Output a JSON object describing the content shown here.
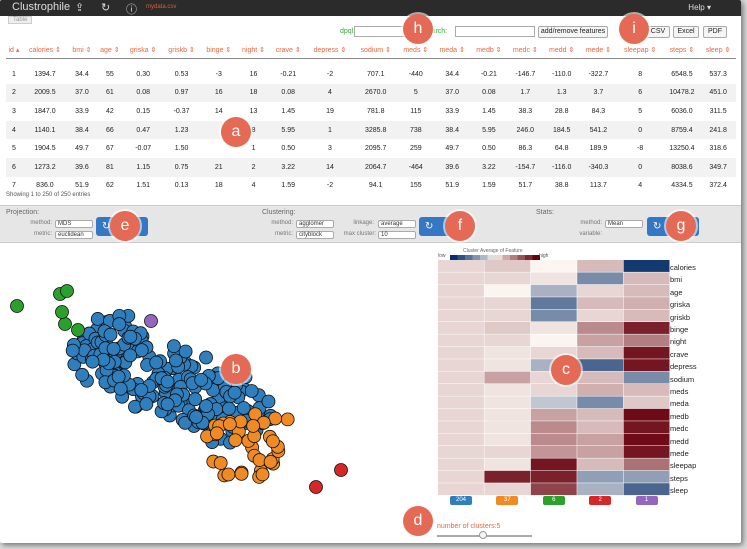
{
  "app": {
    "title": "Clustrophile",
    "filename": "mydata.csv",
    "help": "Help ▾",
    "table_tab": "Table"
  },
  "toolbar": {
    "dpql_label": "dpql:",
    "search_label": "Search:",
    "add_remove": "add/remove features",
    "csv": "CSV",
    "excel": "Excel",
    "pdf": "PDF"
  },
  "table": {
    "columns": [
      "id ▴",
      "calories ⇕",
      "bmi ⇕",
      "age ⇕",
      "griska ⇕",
      "griskb ⇕",
      "binge ⇕",
      "night ⇕",
      "crave ⇕",
      "depress ⇕",
      "sodium ⇕",
      "meds ⇕",
      "meda ⇕",
      "medb ⇕",
      "medc ⇕",
      "medd ⇕",
      "mede ⇕",
      "sleepap ⇕",
      "steps ⇕",
      "sleep ⇕"
    ],
    "rows": [
      [
        "1",
        "1394.7",
        "34.4",
        "55",
        "0.30",
        "0.53",
        "-3",
        "16",
        "-0.21",
        "-2",
        "707.1",
        "-440",
        "34.4",
        "-0.21",
        "-146.7",
        "-110.0",
        "-322.7",
        "8",
        "6548.5",
        "537.3"
      ],
      [
        "2",
        "2009.5",
        "37.0",
        "61",
        "0.08",
        "0.97",
        "16",
        "18",
        "0.08",
        "4",
        "2670.0",
        "5",
        "37.0",
        "0.08",
        "1.7",
        "1.3",
        "3.7",
        "6",
        "10478.2",
        "451.0"
      ],
      [
        "3",
        "1847.0",
        "33.9",
        "42",
        "0.15",
        "-0.37",
        "14",
        "13",
        "1.45",
        "19",
        "781.8",
        "115",
        "33.9",
        "1.45",
        "38.3",
        "28.8",
        "84.3",
        "5",
        "6036.0",
        "311.5"
      ],
      [
        "4",
        "1140.1",
        "38.4",
        "66",
        "0.47",
        "1.23",
        "",
        "8",
        "5.95",
        "1",
        "3285.8",
        "738",
        "38.4",
        "5.95",
        "246.0",
        "184.5",
        "541.2",
        "0",
        "8759.4",
        "241.8"
      ],
      [
        "5",
        "1904.5",
        "49.7",
        "67",
        "-0.07",
        "1.50",
        "",
        "1",
        "0.50",
        "3",
        "2095.7",
        "259",
        "49.7",
        "0.50",
        "86.3",
        "64.8",
        "189.9",
        "-8",
        "13250.4",
        "318.6"
      ],
      [
        "6",
        "1273.2",
        "39.6",
        "81",
        "1.15",
        "0.75",
        "21",
        "2",
        "3.22",
        "14",
        "2064.7",
        "-464",
        "39.6",
        "3.22",
        "-154.7",
        "-116.0",
        "-340.3",
        "0",
        "8038.6",
        "349.7"
      ],
      [
        "7",
        "836.0",
        "51.9",
        "62",
        "1.51",
        "0.13",
        "18",
        "4",
        "1.59",
        "-2",
        "94.1",
        "155",
        "51.9",
        "1.59",
        "51.7",
        "38.8",
        "113.7",
        "4",
        "4334.5",
        "372.4"
      ]
    ],
    "showing": "Showing 1 to 250 of 250 entries"
  },
  "projection": {
    "title": "Projection:",
    "method_label": "method:",
    "method": "MDS",
    "metric_label": "metric:",
    "metric": "euclidean"
  },
  "clustering": {
    "title": "Clustering:",
    "method_label": "method:",
    "method": "agglomer",
    "metric_label": "metric:",
    "metric": "cityblock",
    "linkage_label": "linkage:",
    "linkage": "average",
    "max_label": "max cluster:",
    "max": "10"
  },
  "stats": {
    "title": "Stats:",
    "method_label": "method:",
    "method": "Mean",
    "variable_label": "variable:"
  },
  "heatmap": {
    "title": "Cluster Average of Feature",
    "low": "low",
    "high": "high",
    "features": [
      "calories",
      "bmi",
      "age",
      "griska",
      "griskb",
      "binge",
      "night",
      "crave",
      "depress",
      "sodium",
      "meds",
      "meda",
      "medb",
      "medc",
      "medd",
      "mede",
      "sleepap",
      "steps",
      "sleep"
    ],
    "matrix": [
      [
        0.1,
        0.15,
        0.0,
        0.2,
        -0.95
      ],
      [
        0.1,
        0.1,
        0.05,
        -0.5,
        0.2
      ],
      [
        0.1,
        0.0,
        -0.3,
        0.1,
        0.2
      ],
      [
        0.1,
        0.1,
        -0.6,
        0.2,
        0.25
      ],
      [
        0.1,
        0.1,
        -0.5,
        0.1,
        0.2
      ],
      [
        0.1,
        0.15,
        0.05,
        0.4,
        0.85
      ],
      [
        0.1,
        0.1,
        0.0,
        0.3,
        0.45
      ],
      [
        0.1,
        0.05,
        0.1,
        0.2,
        0.9
      ],
      [
        0.1,
        0.05,
        -0.3,
        -0.7,
        0.9
      ],
      [
        0.1,
        0.3,
        0.1,
        0.2,
        -0.5
      ],
      [
        0.1,
        0.05,
        0.1,
        0.25,
        0.2
      ],
      [
        0.1,
        0.05,
        -0.2,
        -0.5,
        0.15
      ],
      [
        0.1,
        0.05,
        0.3,
        0.2,
        0.95
      ],
      [
        0.1,
        0.05,
        0.4,
        0.2,
        0.9
      ],
      [
        0.1,
        0.05,
        0.4,
        0.3,
        0.95
      ],
      [
        0.1,
        0.1,
        0.35,
        0.3,
        0.9
      ],
      [
        0.1,
        0.05,
        0.9,
        0.2,
        0.5
      ],
      [
        0.1,
        0.85,
        0.85,
        -0.4,
        -0.4
      ],
      [
        0.1,
        0.1,
        0.7,
        -0.3,
        -0.7
      ]
    ],
    "cluster_counts": [
      "204",
      "37",
      "6",
      "2",
      "1"
    ],
    "cluster_colors": [
      "#2f7fbf",
      "#f08a24",
      "#2ca02c",
      "#d62728",
      "#9467bd"
    ]
  },
  "clusters": {
    "label": "number of clusters:",
    "value": "5"
  },
  "callouts": {
    "a": "a",
    "b": "b",
    "c": "c",
    "d": "d",
    "e": "e",
    "f": "f",
    "g": "g",
    "h": "h",
    "i": "i"
  }
}
